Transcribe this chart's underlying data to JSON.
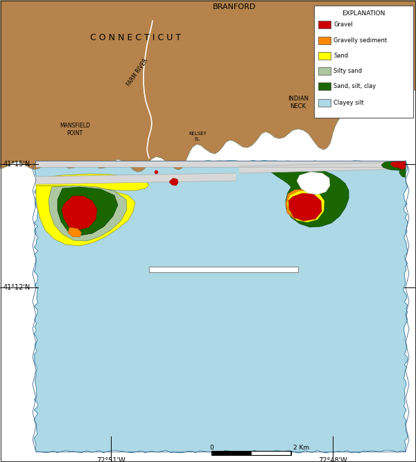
{
  "figsize": [
    6.0,
    6.67
  ],
  "dpi": 100,
  "bg_color": "#ffffff",
  "land_color": "#b5834b",
  "water_color": "#add8e6",
  "legend_items": [
    {
      "label": "Gravel",
      "color": "#cc0000"
    },
    {
      "label": "Gravelly sediment",
      "color": "#ff8800"
    },
    {
      "label": "Sand",
      "color": "#ffff00"
    },
    {
      "label": "Silty sand",
      "color": "#adc8a0"
    },
    {
      "label": "Sand, silt, clay",
      "color": "#1a6600"
    },
    {
      "label": "Clayey silt",
      "color": "#add8e6"
    }
  ]
}
